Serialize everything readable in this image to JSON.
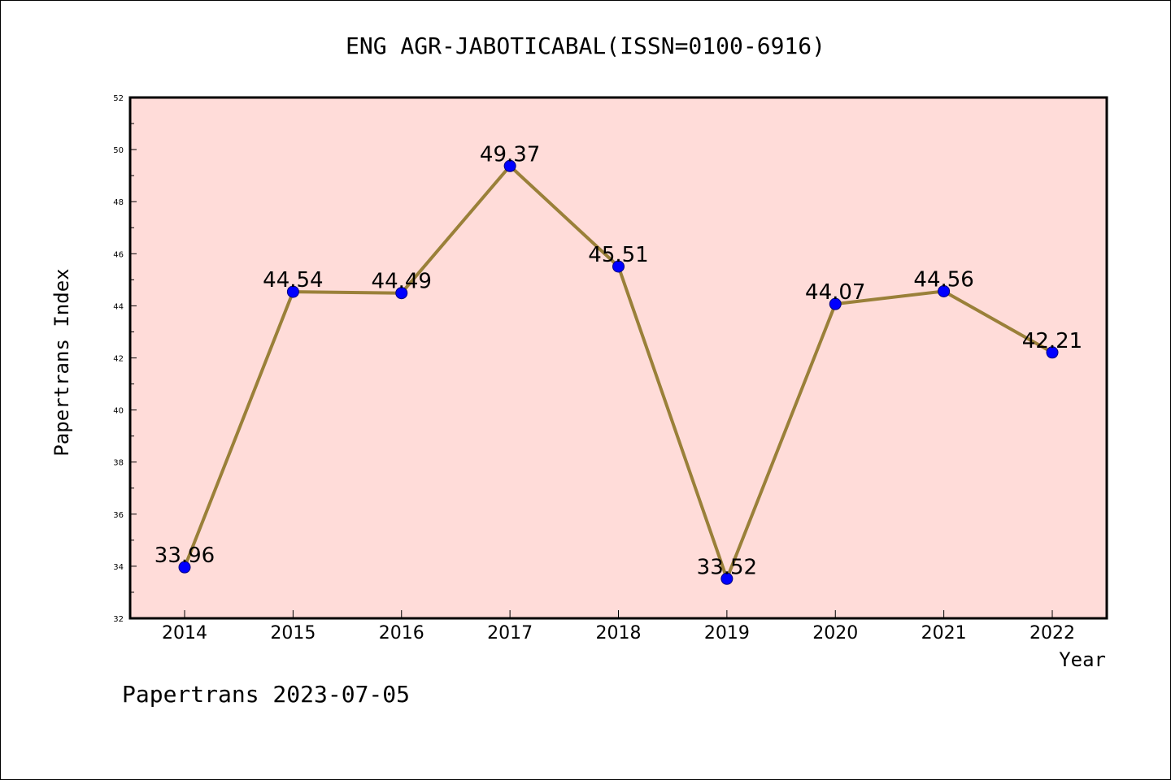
{
  "chart_data": {
    "type": "line",
    "title": "ENG AGR-JABOTICABAL(ISSN=0100-6916)",
    "xlabel": "Year",
    "ylabel": "Papertrans Index",
    "categories": [
      "2014",
      "2015",
      "2016",
      "2017",
      "2018",
      "2019",
      "2020",
      "2021",
      "2022"
    ],
    "series": [
      {
        "values": [
          33.96,
          44.54,
          44.49,
          49.37,
          45.51,
          33.52,
          44.07,
          44.56,
          42.21
        ],
        "labels": [
          "33.96",
          "44.54",
          "44.49",
          "49.37",
          "45.51",
          "33.52",
          "44.07",
          "44.56",
          "42.21"
        ]
      }
    ],
    "ylim": [
      32,
      52
    ],
    "yticks": [
      "32",
      "34",
      "36",
      "38",
      "40",
      "42",
      "44",
      "46",
      "48",
      "50",
      "52"
    ],
    "grid": false,
    "legend": "none",
    "footer": "Papertrans 2023-07-05",
    "colors": {
      "plot_background": "#ffdcd9",
      "line": "#9a8039",
      "marker": "#0000ff",
      "marker_edge": "#000080"
    }
  }
}
